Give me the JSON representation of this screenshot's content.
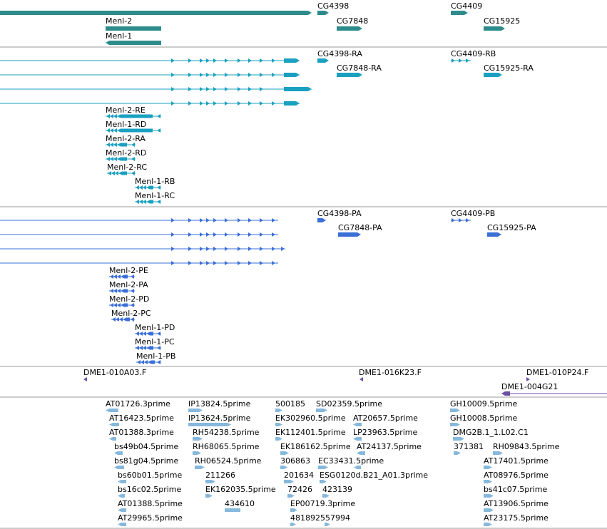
{
  "colors": {
    "gene": "#2e8b8b",
    "transcript": "#1aa0c0",
    "polypeptide": "#3a6fd8",
    "clone": "#6a4fa8",
    "est": "#86b8dc",
    "divider": "#9a9a9a"
  },
  "tracks": {
    "genes": {
      "labels": [
        {
          "id": "cg4398",
          "text": "CG4398"
        },
        {
          "id": "cg7848",
          "text": "CG7848"
        },
        {
          "id": "cg4409",
          "text": "CG4409"
        },
        {
          "id": "cg15925",
          "text": "CG15925"
        },
        {
          "id": "menl2",
          "text": "Menl-2"
        },
        {
          "id": "menl1",
          "text": "Menl-1"
        }
      ]
    },
    "transcripts": {
      "labels": [
        {
          "id": "cg4398-ra",
          "text": "CG4398-RA"
        },
        {
          "id": "cg7848-ra",
          "text": "CG7848-RA"
        },
        {
          "id": "cg4409-rb",
          "text": "CG4409-RB"
        },
        {
          "id": "cg15925-ra",
          "text": "CG15925-RA"
        },
        {
          "id": "menl2-re",
          "text": "Menl-2-RE"
        },
        {
          "id": "menl1-rd",
          "text": "Menl-1-RD"
        },
        {
          "id": "menl2-ra",
          "text": "Menl-2-RA"
        },
        {
          "id": "menl2-rd",
          "text": "Menl-2-RD"
        },
        {
          "id": "menl2-rc",
          "text": "Menl-2-RC"
        },
        {
          "id": "menl1-rb",
          "text": "Menl-1-RB"
        },
        {
          "id": "menl1-rc",
          "text": "Menl-1-RC"
        }
      ]
    },
    "polypeptides": {
      "labels": [
        {
          "id": "cg4398-pa",
          "text": "CG4398-PA"
        },
        {
          "id": "cg7848-pa",
          "text": "CG7848-PA"
        },
        {
          "id": "cg4409-pb",
          "text": "CG4409-PB"
        },
        {
          "id": "cg15925-pa",
          "text": "CG15925-PA"
        },
        {
          "id": "menl2-pe",
          "text": "Menl-2-PE"
        },
        {
          "id": "menl2-pa",
          "text": "Menl-2-PA"
        },
        {
          "id": "menl2-pd",
          "text": "Menl-2-PD"
        },
        {
          "id": "menl2-pc",
          "text": "Menl-2-PC"
        },
        {
          "id": "menl1-pd",
          "text": "Menl-1-PD"
        },
        {
          "id": "menl1-pc",
          "text": "Menl-1-PC"
        },
        {
          "id": "menl1-pb",
          "text": "Menl-1-PB"
        }
      ]
    },
    "clones": {
      "labels": [
        {
          "id": "dme1-010a03",
          "text": "DME1-010A03.F"
        },
        {
          "id": "dme1-016k23",
          "text": "DME1-016K23.F"
        },
        {
          "id": "dme1-010p24",
          "text": "DME1-010P24.F"
        },
        {
          "id": "dme1-004g21",
          "text": "DME1-004G21"
        }
      ]
    },
    "ests": {
      "labels": [
        {
          "id": "at01726",
          "text": "AT01726.3prime"
        },
        {
          "id": "at16423",
          "text": "AT16423.5prime"
        },
        {
          "id": "at01388-3",
          "text": "AT01388.3prime"
        },
        {
          "id": "bs49b04",
          "text": "bs49b04.5prime"
        },
        {
          "id": "bs81g04",
          "text": "bs81g04.5prime"
        },
        {
          "id": "bs60b01",
          "text": "bs60b01.5prime"
        },
        {
          "id": "bs16c02",
          "text": "bs16c02.5prime"
        },
        {
          "id": "at01388-5",
          "text": "AT01388.5prime"
        },
        {
          "id": "at29965",
          "text": "AT29965.5prime"
        },
        {
          "id": "ip13824",
          "text": "IP13824.5prime"
        },
        {
          "id": "ip13624",
          "text": "IP13624.5prime"
        },
        {
          "id": "rh54238",
          "text": "RH54238.5prime"
        },
        {
          "id": "rh68065",
          "text": "RH68065.5prime"
        },
        {
          "id": "rh06524",
          "text": "RH06524.5prime"
        },
        {
          "id": "n211266",
          "text": "211266"
        },
        {
          "id": "ek162035",
          "text": "EK162035.5prime"
        },
        {
          "id": "n434610",
          "text": "434610"
        },
        {
          "id": "n500185",
          "text": "500185"
        },
        {
          "id": "ek302960",
          "text": "EK302960.5prime"
        },
        {
          "id": "ek112401",
          "text": "EK112401.5prime"
        },
        {
          "id": "ek186162",
          "text": "EK186162.5prime"
        },
        {
          "id": "n306863",
          "text": "306863"
        },
        {
          "id": "n201634",
          "text": "201634"
        },
        {
          "id": "n72426",
          "text": "72426"
        },
        {
          "id": "ep00719",
          "text": "EP00719.3prime"
        },
        {
          "id": "n481892557994",
          "text": "481892557994"
        },
        {
          "id": "sd02359",
          "text": "SD02359.5prime"
        },
        {
          "id": "at20657",
          "text": "AT20657.5prime"
        },
        {
          "id": "lp23963",
          "text": "LP23963.5prime"
        },
        {
          "id": "at24137",
          "text": "AT24137.5prime"
        },
        {
          "id": "ec33431",
          "text": "EC33431.5prime"
        },
        {
          "id": "esg0120d",
          "text": "ESG0120d.B21_A01.3prime"
        },
        {
          "id": "n423139",
          "text": "423139"
        },
        {
          "id": "gh10009",
          "text": "GH10009.5prime"
        },
        {
          "id": "gh10008",
          "text": "GH10008.5prime"
        },
        {
          "id": "dmg2b1",
          "text": "DMG2B.1_1.L02.C1"
        },
        {
          "id": "n371381",
          "text": "371381"
        },
        {
          "id": "rh09843",
          "text": "RH09843.5prime"
        },
        {
          "id": "at17401",
          "text": "AT17401.5prime"
        },
        {
          "id": "at08976",
          "text": "AT08976.5prime"
        },
        {
          "id": "bs41c07",
          "text": "bs41c07.5prime"
        },
        {
          "id": "at13906",
          "text": "AT13906.5prime"
        },
        {
          "id": "at23175",
          "text": "AT23175.5prime"
        }
      ]
    }
  }
}
